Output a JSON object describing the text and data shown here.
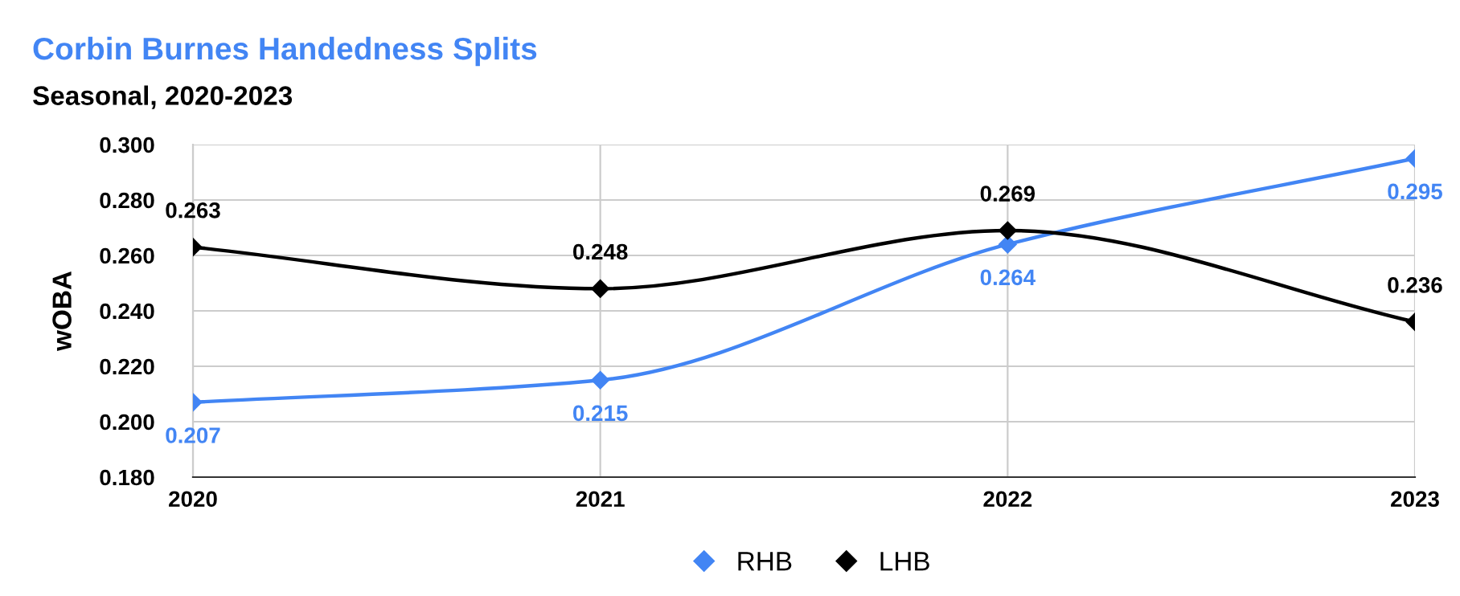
{
  "chart_data": {
    "type": "line",
    "title": "Corbin Burnes Handedness Splits",
    "subtitle": "Seasonal, 2020-2023",
    "ylabel": "wOBA",
    "categories": [
      "2020",
      "2021",
      "2022",
      "2023"
    ],
    "series": [
      {
        "name": "RHB",
        "color": "#4285f4",
        "values": [
          0.207,
          0.215,
          0.264,
          0.295
        ]
      },
      {
        "name": "LHB",
        "color": "#000000",
        "values": [
          0.263,
          0.248,
          0.269,
          0.236
        ]
      }
    ],
    "ylim": [
      0.18,
      0.3
    ],
    "yticks": [
      {
        "value": 0.18,
        "label": "0.180"
      },
      {
        "value": 0.2,
        "label": "0.200"
      },
      {
        "value": 0.22,
        "label": "0.220"
      },
      {
        "value": 0.24,
        "label": "0.240"
      },
      {
        "value": 0.26,
        "label": "0.260"
      },
      {
        "value": 0.28,
        "label": "0.280"
      },
      {
        "value": 0.3,
        "label": "0.300"
      }
    ],
    "grid": true,
    "legend": "bottom",
    "marker": "diamond",
    "line_style": "solid",
    "data_labels": true
  }
}
